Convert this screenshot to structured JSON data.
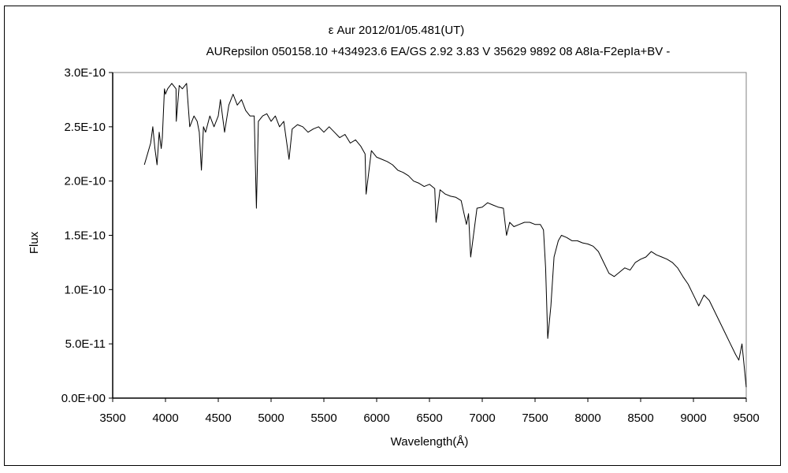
{
  "chart_data": {
    "type": "line",
    "title": "ε  Aur   2012/01/05.481(UT)",
    "subtitle": "AURepsilon 050158.10 +434923.6 EA/GS 2.92 3.83 V 35629 9892 08 A8Ia-F2epIa+BV -",
    "xlabel": "Wavelength(Å)",
    "ylabel": "Flux",
    "xlim": [
      3500,
      9500
    ],
    "ylim": [
      0,
      3e-10
    ],
    "x_ticks": [
      3500,
      4000,
      4500,
      5000,
      5500,
      6000,
      6500,
      7000,
      7500,
      8000,
      8500,
      9000,
      9500
    ],
    "x_tick_labels": [
      "3500",
      "4000",
      "4500",
      "5000",
      "5500",
      "6000",
      "6500",
      "7000",
      "7500",
      "8000",
      "8500",
      "9000",
      "9500"
    ],
    "y_ticks": [
      0,
      5e-11,
      1e-10,
      1.5e-10,
      2e-10,
      2.5e-10,
      3e-10
    ],
    "y_tick_labels": [
      "0.0E+00",
      "5.0E-11",
      "1.0E-10",
      "1.5E-10",
      "2.0E-10",
      "2.5E-10",
      "3.0E-10"
    ],
    "grid": false,
    "line_color": "#000000",
    "series": [
      {
        "x": [
          3800,
          3830,
          3860,
          3880,
          3900,
          3920,
          3940,
          3960,
          3970,
          3990,
          4000,
          4020,
          4060,
          4100,
          4102,
          4130,
          4160,
          4200,
          4230,
          4270,
          4300,
          4320,
          4340,
          4360,
          4380,
          4420,
          4460,
          4500,
          4520,
          4560,
          4600,
          4640,
          4680,
          4720,
          4760,
          4800,
          4840,
          4861,
          4880,
          4920,
          4960,
          5000,
          5040,
          5080,
          5120,
          5170,
          5200,
          5250,
          5300,
          5350,
          5400,
          5450,
          5500,
          5550,
          5600,
          5650,
          5700,
          5750,
          5800,
          5850,
          5890,
          5900,
          5950,
          6000,
          6050,
          6100,
          6150,
          6200,
          6250,
          6300,
          6350,
          6400,
          6450,
          6500,
          6550,
          6563,
          6600,
          6650,
          6700,
          6750,
          6800,
          6850,
          6870,
          6890,
          6950,
          7000,
          7050,
          7100,
          7150,
          7200,
          7230,
          7260,
          7300,
          7350,
          7400,
          7450,
          7500,
          7550,
          7580,
          7600,
          7620,
          7650,
          7680,
          7720,
          7750,
          7800,
          7850,
          7900,
          7950,
          8000,
          8050,
          8100,
          8150,
          8200,
          8250,
          8300,
          8350,
          8400,
          8450,
          8500,
          8550,
          8600,
          8650,
          8700,
          8750,
          8800,
          8850,
          8900,
          8950,
          9000,
          9050,
          9100,
          9150,
          9200,
          9250,
          9300,
          9350,
          9400,
          9430,
          9460,
          9480,
          9500
        ],
        "y": [
          2.15e-10,
          2.25e-10,
          2.35e-10,
          2.5e-10,
          2.3e-10,
          2.15e-10,
          2.45e-10,
          2.3e-10,
          2.4e-10,
          2.85e-10,
          2.8e-10,
          2.85e-10,
          2.9e-10,
          2.85e-10,
          2.55e-10,
          2.88e-10,
          2.85e-10,
          2.9e-10,
          2.5e-10,
          2.6e-10,
          2.55e-10,
          2.45e-10,
          2.1e-10,
          2.5e-10,
          2.45e-10,
          2.6e-10,
          2.5e-10,
          2.6e-10,
          2.75e-10,
          2.45e-10,
          2.7e-10,
          2.8e-10,
          2.7e-10,
          2.75e-10,
          2.65e-10,
          2.6e-10,
          2.6e-10,
          1.75e-10,
          2.55e-10,
          2.6e-10,
          2.62e-10,
          2.55e-10,
          2.6e-10,
          2.5e-10,
          2.55e-10,
          2.2e-10,
          2.48e-10,
          2.52e-10,
          2.5e-10,
          2.45e-10,
          2.48e-10,
          2.5e-10,
          2.45e-10,
          2.5e-10,
          2.45e-10,
          2.4e-10,
          2.43e-10,
          2.35e-10,
          2.38e-10,
          2.32e-10,
          2.25e-10,
          1.88e-10,
          2.28e-10,
          2.22e-10,
          2.2e-10,
          2.18e-10,
          2.15e-10,
          2.1e-10,
          2.08e-10,
          2.05e-10,
          2e-10,
          1.98e-10,
          1.95e-10,
          1.97e-10,
          1.93e-10,
          1.62e-10,
          1.92e-10,
          1.88e-10,
          1.86e-10,
          1.85e-10,
          1.82e-10,
          1.6e-10,
          1.7e-10,
          1.3e-10,
          1.75e-10,
          1.76e-10,
          1.8e-10,
          1.78e-10,
          1.76e-10,
          1.75e-10,
          1.5e-10,
          1.62e-10,
          1.58e-10,
          1.6e-10,
          1.62e-10,
          1.62e-10,
          1.6e-10,
          1.6e-10,
          1.55e-10,
          1.2e-10,
          5.5e-11,
          8.5e-11,
          1.3e-10,
          1.45e-10,
          1.5e-10,
          1.48e-10,
          1.45e-10,
          1.45e-10,
          1.43e-10,
          1.42e-10,
          1.4e-10,
          1.35e-10,
          1.25e-10,
          1.15e-10,
          1.12e-10,
          1.16e-10,
          1.2e-10,
          1.18e-10,
          1.25e-10,
          1.28e-10,
          1.3e-10,
          1.35e-10,
          1.32e-10,
          1.3e-10,
          1.28e-10,
          1.25e-10,
          1.2e-10,
          1.12e-10,
          1.05e-10,
          9.5e-11,
          8.5e-11,
          9.5e-11,
          9e-11,
          8e-11,
          7e-11,
          6e-11,
          5e-11,
          4e-11,
          3.5e-11,
          5e-11,
          3e-11,
          1e-11
        ]
      }
    ]
  }
}
